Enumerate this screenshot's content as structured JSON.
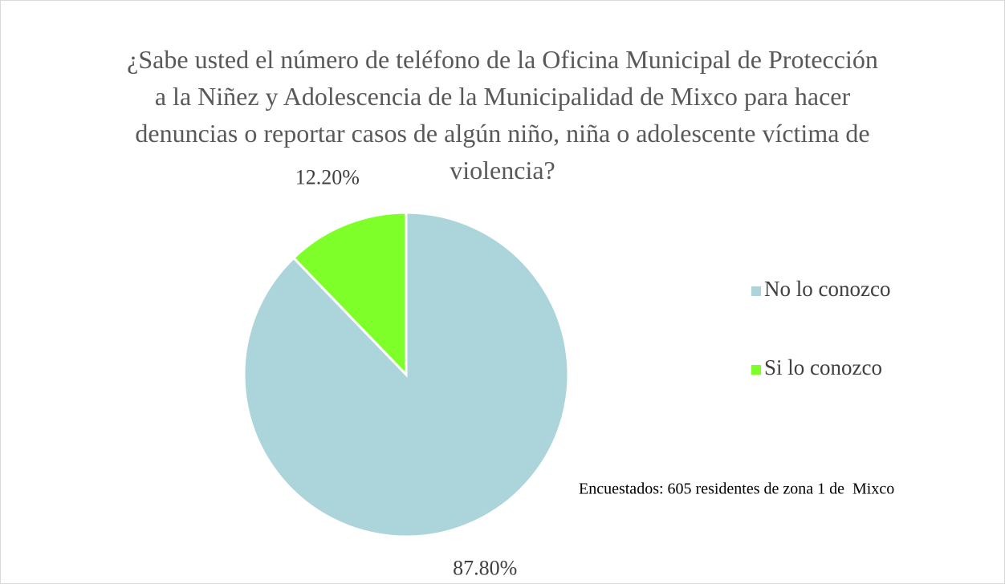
{
  "chart_data": {
    "type": "pie",
    "title": "¿Sabe usted el número de teléfono de la Oficina Municipal de Protección a la Niñez y Adolescencia de la Municipalidad de Mixco para hacer denuncias o reportar casos de algún niño, niña o adolescente víctima de violencia?",
    "categories": [
      "No lo conozco",
      "Si lo conozco"
    ],
    "values": [
      87.8,
      12.2
    ],
    "value_labels": [
      "87.80%",
      "12.20%"
    ],
    "colors": [
      "#abd5db",
      "#7fff2a"
    ],
    "annotation": "Encuestados: 605 residentes de zona 1 de  Mixco",
    "legend": "right"
  }
}
